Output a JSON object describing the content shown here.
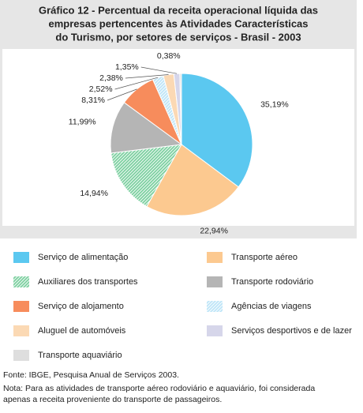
{
  "chart_data": {
    "type": "pie",
    "title": [
      "Gráfico 12 - Percentual da receita operacional líquida das",
      "empresas pertencentes às Atividades Características",
      "do Turismo, por setores de serviços - Brasil - 2003"
    ],
    "categories": [
      "Serviço de alimentação",
      "Transporte aéreo",
      "Auxiliares dos transportes",
      "Transporte rodoviário",
      "Serviço de alojamento",
      "Agências de viagens",
      "Aluguel de automóveis",
      "Serviços desportivos e de lazer",
      "Transporte aquaviário"
    ],
    "values": [
      35.19,
      22.94,
      14.94,
      11.99,
      8.31,
      2.52,
      2.38,
      1.35,
      0.38
    ],
    "value_labels": [
      "35,19%",
      "22,94%",
      "14,94%",
      "11,99%",
      "8,31%",
      "2,52%",
      "2,38%",
      "1,35%",
      "0,38%"
    ],
    "colors": [
      "#5bc8f0",
      "#fcc990",
      "#7fd1a2",
      "#b5b5b5",
      "#f78c5c",
      "#bfe6f8",
      "#fbd9b4",
      "#d6d6ea",
      "#dedede"
    ],
    "hatched": [
      false,
      false,
      true,
      false,
      false,
      true,
      false,
      false,
      false
    ]
  },
  "notes": {
    "source": "Fonte: IBGE, Pesquisa Anual de Serviços 2003.",
    "note": [
      "Nota: Para as atividades de transporte aéreo rodoviário e aquaviário, foi considerada",
      "apenas a receita proveniente do transporte de passageiros."
    ]
  }
}
